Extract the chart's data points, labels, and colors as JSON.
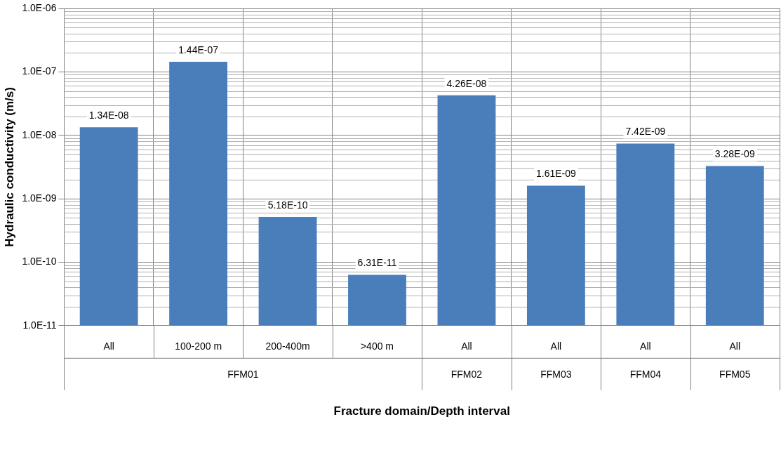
{
  "chart_data": {
    "type": "bar",
    "xlabel": "Fracture domain/Depth interval",
    "ylabel": "Hydraulic conductivity (m/s)",
    "categories": [
      "All",
      "100-200 m",
      "200-400m",
      ">400 m",
      "All",
      "All",
      "All",
      "All"
    ],
    "values": [
      1.34e-08,
      1.44e-07,
      5.18e-10,
      6.31e-11,
      4.26e-08,
      1.61e-09,
      7.42e-09,
      3.28e-09
    ],
    "value_labels": [
      "1.34E-08",
      "1.44E-07",
      "5.18E-10",
      "6.31E-11",
      "4.26E-08",
      "1.61E-09",
      "7.42E-09",
      "3.28E-09"
    ],
    "color": "#4a7ebb",
    "log": true,
    "grid": true,
    "legend": false,
    "ylim": [
      1e-11,
      1e-06
    ],
    "yticks": [
      {
        "value": 1e-11,
        "label": "1.0E-11"
      },
      {
        "value": 1e-10,
        "label": "1.0E-10"
      },
      {
        "value": 1e-09,
        "label": "1.0E-09"
      },
      {
        "value": 1e-08,
        "label": "1.0E-08"
      },
      {
        "value": 1e-07,
        "label": "1.0E-07"
      },
      {
        "value": 1e-06,
        "label": "1.0E-06"
      }
    ],
    "annotations": [
      "FFM01",
      "FFM02",
      "FFM03",
      "FFM04",
      "FFM05"
    ]
  }
}
